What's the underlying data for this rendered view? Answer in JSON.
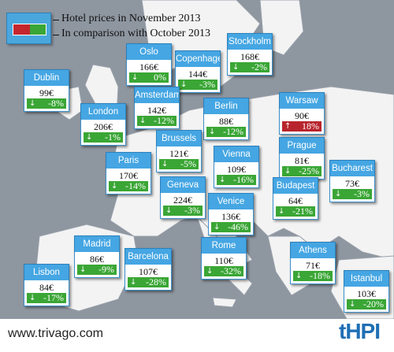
{
  "legend": {
    "line1": "Hotel prices in November 2013",
    "line2": "In comparison with October 2013",
    "colors": {
      "up": "#c4262e",
      "down": "#3aa635",
      "accent": "#45a6e3"
    }
  },
  "cities": {
    "oslo": {
      "name": "Oslo",
      "price": "166€",
      "change": "0%",
      "direction": "down"
    },
    "copenhagen": {
      "name": "Copenhagen",
      "price": "144€",
      "change": "-3%",
      "direction": "down"
    },
    "stockholm": {
      "name": "Stockholm",
      "price": "168€",
      "change": "-2%",
      "direction": "down"
    },
    "dublin": {
      "name": "Dublin",
      "price": "99€",
      "change": "-8%",
      "direction": "down"
    },
    "amsterdam": {
      "name": "Amsterdam",
      "price": "142€",
      "change": "-12%",
      "direction": "down"
    },
    "london": {
      "name": "London",
      "price": "206€",
      "change": "-1%",
      "direction": "down"
    },
    "berlin": {
      "name": "Berlin",
      "price": "88€",
      "change": "-12%",
      "direction": "down"
    },
    "warsaw": {
      "name": "Warsaw",
      "price": "90€",
      "change": "18%",
      "direction": "up"
    },
    "brussels": {
      "name": "Brussels",
      "price": "121€",
      "change": "-5%",
      "direction": "down"
    },
    "paris": {
      "name": "Paris",
      "price": "170€",
      "change": "-14%",
      "direction": "down"
    },
    "vienna": {
      "name": "Vienna",
      "price": "109€",
      "change": "-16%",
      "direction": "down"
    },
    "prague": {
      "name": "Prague",
      "price": "81€",
      "change": "-25%",
      "direction": "down"
    },
    "bucharest": {
      "name": "Bucharest",
      "price": "73€",
      "change": "-3%",
      "direction": "down"
    },
    "geneva": {
      "name": "Geneva",
      "price": "224€",
      "change": "-3%",
      "direction": "down"
    },
    "budapest": {
      "name": "Budapest",
      "price": "64€",
      "change": "-21%",
      "direction": "down"
    },
    "venice": {
      "name": "Venice",
      "price": "136€",
      "change": "-46%",
      "direction": "down"
    },
    "madrid": {
      "name": "Madrid",
      "price": "86€",
      "change": "-9%",
      "direction": "down"
    },
    "barcelona": {
      "name": "Barcelona",
      "price": "107€",
      "change": "-28%",
      "direction": "down"
    },
    "rome": {
      "name": "Rome",
      "price": "110€",
      "change": "-32%",
      "direction": "down"
    },
    "athens": {
      "name": "Athens",
      "price": "71€",
      "change": "-18%",
      "direction": "down"
    },
    "lisbon": {
      "name": "Lisbon",
      "price": "84€",
      "change": "-17%",
      "direction": "down"
    },
    "istanbul": {
      "name": "Istanbul",
      "price": "103€",
      "change": "-20%",
      "direction": "down"
    }
  },
  "footer": {
    "url": "www.trivago.com",
    "logo": "tHPI"
  }
}
